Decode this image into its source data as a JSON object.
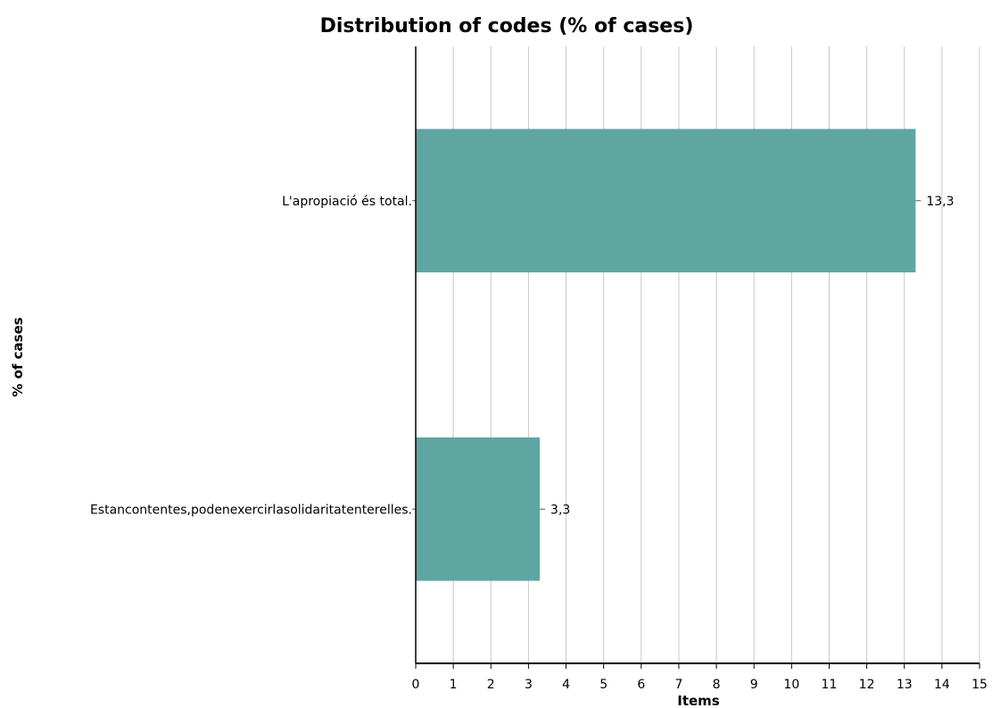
{
  "chart_data": {
    "type": "bar",
    "orientation": "horizontal",
    "title": "Distribution of codes (% of cases)",
    "xlabel": "Items",
    "ylabel": "% of cases",
    "xlim": [
      0,
      15
    ],
    "x_ticks": [
      "0",
      "1",
      "2",
      "3",
      "4",
      "5",
      "6",
      "7",
      "8",
      "9",
      "10",
      "11",
      "12",
      "13",
      "14",
      "15"
    ],
    "grid": true,
    "categories": [
      "L'apropiació és total.",
      "Estancontentes,podenexercirlasolidaritatenterelles."
    ],
    "values": [
      13.3,
      3.3
    ],
    "value_labels": [
      "13,3",
      "3,3"
    ],
    "bar_color": "#5fa6a3"
  }
}
